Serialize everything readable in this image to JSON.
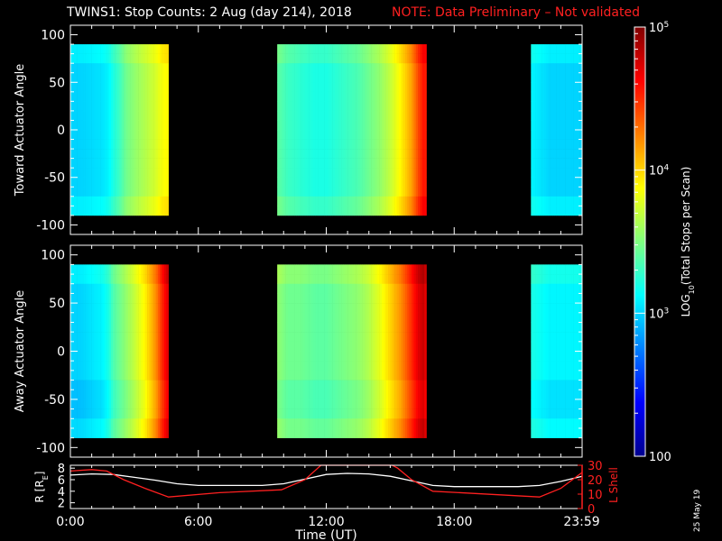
{
  "title": {
    "main": "TWINS1: Stop Counts:  2 Aug (day 214), 2018",
    "note": "NOTE: Data Preliminary – Not validated"
  },
  "stamp": "25 May 19",
  "colors": {
    "background": "#000000",
    "axes": "#ffffff",
    "note": "#ff2020",
    "lshell": "#ff2020",
    "r": "#ffffff"
  },
  "chart_data": [
    {
      "type": "heatmap",
      "ylabel": "Toward Actuator Angle",
      "xlim": [
        0,
        24
      ],
      "ylim": [
        -110,
        110
      ],
      "yticks": [
        100,
        50,
        0,
        -50,
        -100
      ],
      "data_coverage": {
        "angle_range": [
          -90,
          90
        ],
        "time_ranges": [
          [
            0,
            4.6
          ],
          [
            9.7,
            16.7
          ],
          [
            21.6,
            24
          ]
        ]
      },
      "log_level_by_time": [
        [
          0.0,
          3.0
        ],
        [
          0.5,
          3.0
        ],
        [
          1.0,
          3.02
        ],
        [
          1.5,
          3.05
        ],
        [
          1.8,
          3.1
        ],
        [
          2.0,
          3.2
        ],
        [
          2.3,
          3.3
        ],
        [
          2.6,
          3.45
        ],
        [
          3.0,
          3.55
        ],
        [
          3.5,
          3.65
        ],
        [
          4.0,
          3.75
        ],
        [
          4.3,
          3.85
        ],
        [
          4.6,
          3.9
        ],
        [
          9.7,
          3.4
        ],
        [
          10.2,
          3.3
        ],
        [
          10.8,
          3.25
        ],
        [
          11.5,
          3.2
        ],
        [
          12.0,
          3.2
        ],
        [
          12.5,
          3.25
        ],
        [
          13.0,
          3.3
        ],
        [
          13.5,
          3.35
        ],
        [
          14.0,
          3.45
        ],
        [
          14.5,
          3.55
        ],
        [
          15.0,
          3.7
        ],
        [
          15.5,
          3.9
        ],
        [
          16.0,
          4.15
        ],
        [
          16.3,
          4.4
        ],
        [
          16.6,
          4.6
        ],
        [
          16.7,
          4.5
        ],
        [
          21.6,
          3.1
        ],
        [
          22.5,
          3.0
        ],
        [
          23.5,
          3.0
        ],
        [
          24.0,
          3.0
        ]
      ]
    },
    {
      "type": "heatmap",
      "ylabel": "Away Actuator Angle",
      "xlim": [
        0,
        24
      ],
      "ylim": [
        -110,
        110
      ],
      "yticks": [
        100,
        50,
        0,
        -50,
        -100
      ],
      "data_coverage": {
        "angle_range": [
          -90,
          90
        ],
        "time_ranges": [
          [
            0,
            4.6
          ],
          [
            9.7,
            16.7
          ],
          [
            21.6,
            24
          ]
        ]
      },
      "log_level_by_time": [
        [
          0.0,
          3.0
        ],
        [
          0.5,
          3.0
        ],
        [
          1.0,
          3.05
        ],
        [
          1.5,
          3.1
        ],
        [
          1.8,
          3.2
        ],
        [
          2.0,
          3.35
        ],
        [
          2.3,
          3.45
        ],
        [
          2.6,
          3.55
        ],
        [
          3.0,
          3.7
        ],
        [
          3.5,
          3.9
        ],
        [
          4.0,
          4.2
        ],
        [
          4.3,
          4.5
        ],
        [
          4.6,
          4.75
        ],
        [
          9.7,
          3.55
        ],
        [
          10.2,
          3.45
        ],
        [
          10.8,
          3.45
        ],
        [
          11.5,
          3.4
        ],
        [
          12.0,
          3.4
        ],
        [
          12.5,
          3.45
        ],
        [
          13.0,
          3.5
        ],
        [
          13.5,
          3.55
        ],
        [
          14.0,
          3.65
        ],
        [
          14.5,
          3.8
        ],
        [
          15.0,
          4.0
        ],
        [
          15.5,
          4.2
        ],
        [
          16.0,
          4.5
        ],
        [
          16.3,
          4.7
        ],
        [
          16.6,
          4.8
        ],
        [
          16.7,
          4.6
        ],
        [
          21.6,
          3.2
        ],
        [
          22.5,
          3.1
        ],
        [
          23.5,
          3.1
        ],
        [
          24.0,
          3.1
        ]
      ]
    },
    {
      "type": "line",
      "ylabel": "R [RE]",
      "y2label": "L Shell",
      "xlabel": "Time (UT)",
      "xlim": [
        0,
        24
      ],
      "xticks": [
        "0:00",
        "6:00",
        "12:00",
        "18:00",
        "23:59"
      ],
      "xtick_hours": [
        0,
        6,
        12,
        18,
        23.98
      ],
      "ylim": [
        1,
        8.5
      ],
      "yticks": [
        2,
        4,
        6,
        8
      ],
      "y2lim": [
        0,
        30
      ],
      "y2ticks": [
        0,
        10,
        20,
        30
      ],
      "series": [
        {
          "axis": "left",
          "color": "#ffffff",
          "x": [
            0,
            1,
            2,
            3,
            4,
            5,
            6,
            7,
            8,
            9,
            10,
            11,
            12,
            13,
            14,
            15,
            16,
            17,
            18,
            19,
            20,
            21,
            22,
            23,
            24
          ],
          "y": [
            6.8,
            7.0,
            6.9,
            6.4,
            5.9,
            5.3,
            5.0,
            5.0,
            5.0,
            5.0,
            5.3,
            6.1,
            6.9,
            7.1,
            7.0,
            6.6,
            5.8,
            5.0,
            4.8,
            4.8,
            4.8,
            4.8,
            5.0,
            5.7,
            6.6
          ]
        },
        {
          "axis": "right",
          "color": "#ff2020",
          "x": [
            0,
            1,
            1.7,
            2.5,
            3.5,
            4.6,
            7,
            9.9,
            11.0,
            11.6,
            11.75,
            15.1,
            15.35,
            16.0,
            17.0,
            22.0,
            23.0,
            24.0
          ],
          "y": [
            26,
            27,
            26,
            20,
            14,
            8,
            11,
            13,
            20,
            28,
            30,
            30,
            28,
            20,
            12,
            8,
            14,
            25
          ]
        }
      ]
    }
  ],
  "colorbar": {
    "label": "LOG10(Total Stops per Scan)",
    "log_range": [
      2,
      5
    ],
    "ticks": [
      {
        "log": 5,
        "label": "10^5"
      },
      {
        "log": 4,
        "label": "10^4"
      },
      {
        "log": 3,
        "label": "10^3"
      },
      {
        "log": 2,
        "label": "100"
      }
    ]
  }
}
